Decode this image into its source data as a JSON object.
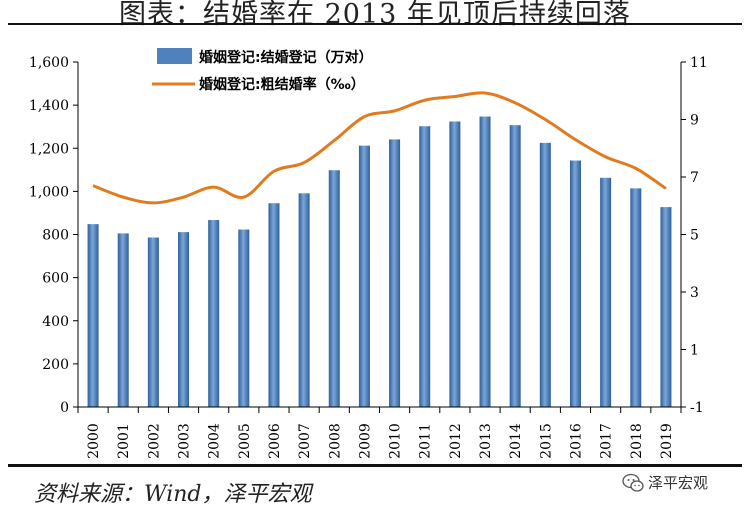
{
  "header": {
    "title": "图表：结婚率在 2013 年见顶后持续回落"
  },
  "footer": {
    "source": "资料来源：Wind，泽平宏观",
    "brand": "泽平宏观",
    "brand_icon": "wechat-icon"
  },
  "chart_data": {
    "type": "bar+line",
    "categories": [
      "2000",
      "2001",
      "2002",
      "2003",
      "2004",
      "2005",
      "2006",
      "2007",
      "2008",
      "2009",
      "2010",
      "2011",
      "2012",
      "2013",
      "2014",
      "2015",
      "2016",
      "2017",
      "2018",
      "2019"
    ],
    "series": [
      {
        "name": "婚姻登记:结婚登记（万对）",
        "type": "bar",
        "axis": "left",
        "color": "#4f81bd",
        "values": [
          848,
          805,
          786,
          811,
          867,
          823,
          945,
          991,
          1098,
          1212,
          1241,
          1302,
          1324,
          1347,
          1307,
          1225,
          1143,
          1063,
          1014,
          927
        ]
      },
      {
        "name": "婚姻登记:粗结婚率（‰）",
        "type": "line",
        "axis": "right",
        "color": "#e07b1f",
        "values": [
          6.7,
          6.3,
          6.1,
          6.3,
          6.65,
          6.3,
          7.2,
          7.5,
          8.27,
          9.1,
          9.3,
          9.67,
          9.8,
          9.92,
          9.58,
          9.0,
          8.3,
          7.7,
          7.3,
          6.6
        ]
      }
    ],
    "y_left": {
      "range": [
        0,
        1600
      ],
      "ticks": [
        "0",
        "200",
        "400",
        "600",
        "800",
        "1,000",
        "1,200",
        "1,400",
        "1,600"
      ]
    },
    "y_right": {
      "range": [
        -1,
        11
      ],
      "ticks": [
        "-1",
        "1",
        "3",
        "5",
        "7",
        "9",
        "11"
      ]
    },
    "grid": false,
    "legend_position": "top-left"
  }
}
